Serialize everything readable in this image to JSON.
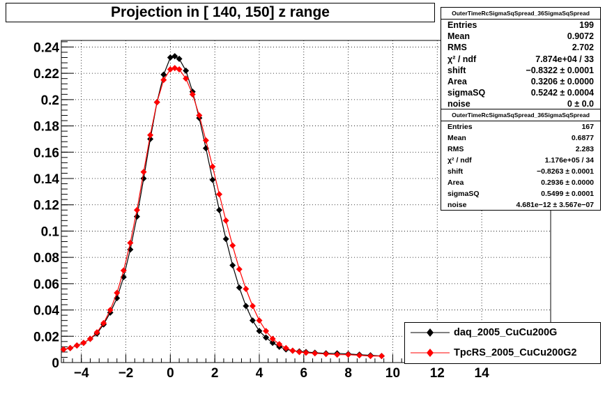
{
  "chart_data": {
    "type": "scatter",
    "title": "Projection in [ 140, 150] z range",
    "xlabel": "",
    "ylabel": "",
    "xlim": [
      -4.9,
      17.1
    ],
    "ylim": [
      0,
      0.245
    ],
    "x_ticks": [
      "-4",
      "-2",
      "0",
      "2",
      "4",
      "6",
      "8",
      "10",
      "12",
      "14"
    ],
    "y_ticks": [
      "0",
      "0.02",
      "0.04",
      "0.06",
      "0.08",
      "0.1",
      "0.12",
      "0.14",
      "0.16",
      "0.18",
      "0.2",
      "0.22",
      "0.24"
    ],
    "grid": true,
    "series": [
      {
        "name": "daq_2005_CuCu200G",
        "color": "#000000",
        "marker": "diamond",
        "x": [
          -4.8,
          -4.5,
          -4.2,
          -3.9,
          -3.6,
          -3.3,
          -3.0,
          -2.7,
          -2.4,
          -2.1,
          -1.8,
          -1.5,
          -1.2,
          -0.9,
          -0.6,
          -0.3,
          0.0,
          0.2,
          0.4,
          0.7,
          1.0,
          1.3,
          1.6,
          1.9,
          2.2,
          2.5,
          2.8,
          3.1,
          3.4,
          3.7,
          4.0,
          4.3,
          4.6,
          4.9,
          5.2,
          5.5,
          5.8,
          6.1,
          6.5,
          7.0,
          7.5,
          8.0,
          8.5,
          9.0,
          9.5
        ],
        "y": [
          0.01,
          0.011,
          0.013,
          0.015,
          0.018,
          0.022,
          0.029,
          0.038,
          0.049,
          0.065,
          0.086,
          0.111,
          0.14,
          0.17,
          0.198,
          0.219,
          0.232,
          0.233,
          0.231,
          0.222,
          0.206,
          0.186,
          0.163,
          0.139,
          0.116,
          0.094,
          0.074,
          0.057,
          0.043,
          0.032,
          0.024,
          0.019,
          0.015,
          0.012,
          0.01,
          0.009,
          0.0085,
          0.008,
          0.0075,
          0.007,
          0.007,
          0.0065,
          0.006,
          0.0055,
          0.005
        ]
      },
      {
        "name": "TpcRS_2005_CuCu200G2",
        "color": "#ff0000",
        "marker": "diamond",
        "x": [
          -4.8,
          -4.5,
          -4.2,
          -3.9,
          -3.6,
          -3.3,
          -3.0,
          -2.7,
          -2.4,
          -2.1,
          -1.8,
          -1.5,
          -1.2,
          -0.9,
          -0.6,
          -0.3,
          0.0,
          0.2,
          0.4,
          0.7,
          1.0,
          1.3,
          1.6,
          1.9,
          2.2,
          2.5,
          2.8,
          3.1,
          3.4,
          3.7,
          4.0,
          4.3,
          4.6,
          4.9,
          5.2,
          5.5,
          5.8,
          6.1,
          6.5,
          7.0,
          7.5,
          8.0,
          8.5,
          9.0,
          9.5
        ],
        "y": [
          0.01,
          0.011,
          0.013,
          0.015,
          0.018,
          0.023,
          0.03,
          0.04,
          0.053,
          0.07,
          0.091,
          0.116,
          0.145,
          0.173,
          0.198,
          0.215,
          0.223,
          0.224,
          0.223,
          0.216,
          0.204,
          0.188,
          0.169,
          0.149,
          0.128,
          0.108,
          0.089,
          0.071,
          0.056,
          0.043,
          0.032,
          0.024,
          0.018,
          0.014,
          0.011,
          0.009,
          0.008,
          0.0075,
          0.007,
          0.0065,
          0.006,
          0.006,
          0.0055,
          0.005,
          0.005
        ]
      }
    ]
  },
  "stats": [
    {
      "header": "OuterTimeRcSigmaSqSpread_36SigmaSqSpread",
      "rows": [
        {
          "label": "Entries",
          "value": "199"
        },
        {
          "label": "Mean",
          "value": "0.9072"
        },
        {
          "label": "RMS",
          "value": "2.702"
        },
        {
          "label": "χ² / ndf",
          "value": "7.874e+04 / 33"
        },
        {
          "label": "shift",
          "value": "−0.8322 ± 0.0001"
        },
        {
          "label": "Area",
          "value": "0.3206 ± 0.0000"
        },
        {
          "label": "sigmaSQ",
          "value": "0.5242 ± 0.0004"
        },
        {
          "label": "noise",
          "value": "0 ± 0.0"
        }
      ]
    },
    {
      "header": "OuterTimeRcSigmaSqSpread_36SigmaSqSpread",
      "rows": [
        {
          "label": "Entries",
          "value": "167"
        },
        {
          "label": "Mean",
          "value": "0.6877"
        },
        {
          "label": "RMS",
          "value": "2.283"
        },
        {
          "label": "χ² / ndf",
          "value": "1.176e+05 / 34"
        },
        {
          "label": "shift",
          "value": "−0.8263 ± 0.0001"
        },
        {
          "label": "Area",
          "value": "0.2936 ± 0.0000"
        },
        {
          "label": "sigmaSQ",
          "value": "0.5499 ± 0.0001"
        },
        {
          "label": "noise",
          "value": "4.681e−12 ± 3.567e−07"
        }
      ]
    }
  ],
  "legend": {
    "entries": [
      "daq_2005_CuCu200G",
      "TpcRS_2005_CuCu200G2"
    ]
  }
}
